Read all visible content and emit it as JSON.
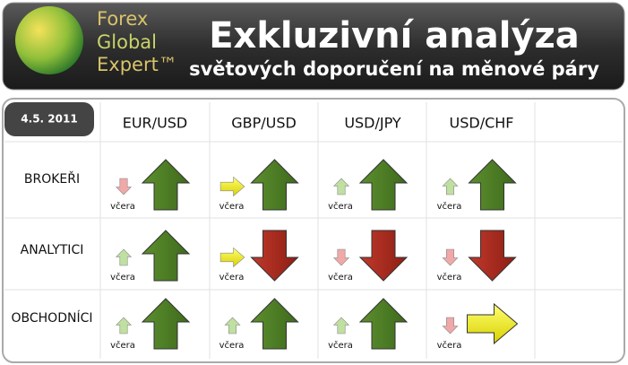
{
  "header": {
    "brand": [
      "Forex",
      "Global",
      "Expert™"
    ],
    "title": "Exkluzivní analýza",
    "subtitle": "světových doporučení na měnové páry"
  },
  "table": {
    "date": "4.5. 2011",
    "columns": [
      "EUR/USD",
      "GBP/USD",
      "USD/JPY",
      "USD/CHF"
    ],
    "rows": [
      {
        "label": "BROKEŘI",
        "cells": [
          "včera",
          "včera",
          "včera",
          "včera"
        ]
      },
      {
        "label": "ANALYTICI",
        "cells": [
          "včera",
          "včera",
          "včera",
          "včera"
        ]
      },
      {
        "label": "OBCHODNÍCI",
        "cells": [
          "včera",
          "včera",
          "včera",
          "včera"
        ]
      }
    ]
  }
}
